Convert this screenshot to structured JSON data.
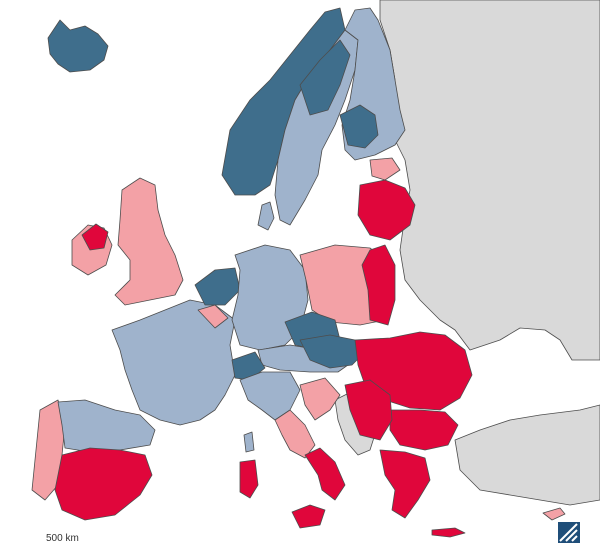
{
  "map": {
    "scale_label": "500 km",
    "legend": {
      "colors": {
        "very_low": "#3f6e8c",
        "low": "#9fb3cc",
        "high": "#f3a1a6",
        "very_high": "#e0063b",
        "non_covered": "#d9d9d9",
        "sea": "#ffffff",
        "border": "#4d4d4d"
      }
    },
    "logo_icon": "diagonal-stripes-square-icon"
  }
}
